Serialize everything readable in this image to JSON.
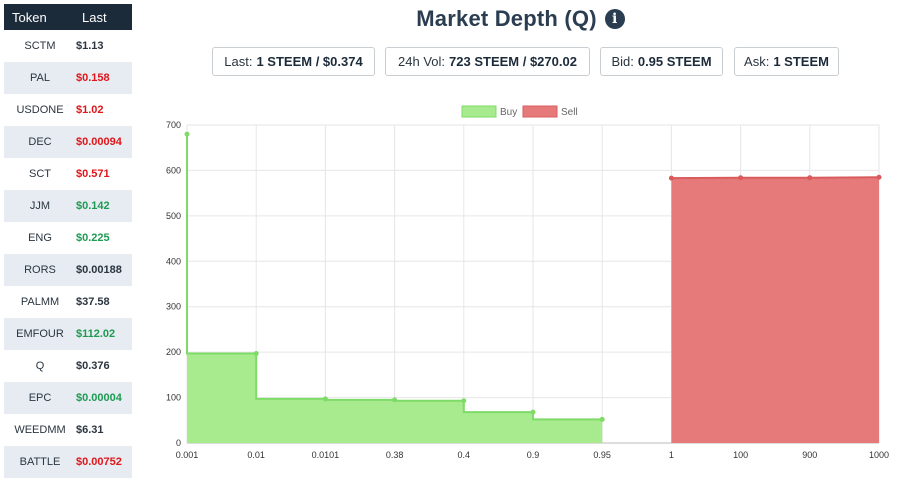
{
  "token_table": {
    "header": {
      "token": "Token",
      "last": "Last"
    },
    "rows": [
      {
        "symbol": "SCTM",
        "price": "$1.13",
        "trend": "neutral"
      },
      {
        "symbol": "PAL",
        "price": "$0.158",
        "trend": "down"
      },
      {
        "symbol": "USDONE",
        "price": "$1.02",
        "trend": "down"
      },
      {
        "symbol": "DEC",
        "price": "$0.00094",
        "trend": "down"
      },
      {
        "symbol": "SCT",
        "price": "$0.571",
        "trend": "down"
      },
      {
        "symbol": "JJM",
        "price": "$0.142",
        "trend": "up"
      },
      {
        "symbol": "ENG",
        "price": "$0.225",
        "trend": "up"
      },
      {
        "symbol": "RORS",
        "price": "$0.00188",
        "trend": "neutral"
      },
      {
        "symbol": "PALMM",
        "price": "$37.58",
        "trend": "neutral"
      },
      {
        "symbol": "EMFOUR",
        "price": "$112.02",
        "trend": "up"
      },
      {
        "symbol": "Q",
        "price": "$0.376",
        "trend": "neutral"
      },
      {
        "symbol": "EPC",
        "price": "$0.00004",
        "trend": "up"
      },
      {
        "symbol": "WEEDMM",
        "price": "$6.31",
        "trend": "neutral"
      },
      {
        "symbol": "BATTLE",
        "price": "$0.00752",
        "trend": "down"
      }
    ]
  },
  "title": "Market Depth (Q)",
  "stats": {
    "last_label": "Last:",
    "last_value": "1 STEEM / $0.374",
    "vol_label": "24h Vol:",
    "vol_value": "723 STEEM / $270.02",
    "bid_label": "Bid:",
    "bid_value": "0.95 STEEM",
    "ask_label": "Ask:",
    "ask_value": "1 STEEM"
  },
  "colors": {
    "buy_fill": "#a8ea8e",
    "buy_line": "#7fdb67",
    "sell_fill": "#e67a7a",
    "sell_line": "#d95c5c",
    "up": "#1e9a52",
    "down": "#e0161b",
    "header_bg": "#1c2b3a"
  },
  "chart_data": {
    "type": "area",
    "xlabel": "",
    "ylabel": "",
    "categories": [
      "0.001",
      "0.01",
      "0.0101",
      "0.38",
      "0.4",
      "0.9",
      "0.95",
      "1",
      "100",
      "900",
      "1000"
    ],
    "ylim": [
      0,
      700
    ],
    "y_ticks": [
      0,
      100,
      200,
      300,
      400,
      500,
      600,
      700
    ],
    "grid": true,
    "legend_position": "top-center",
    "series": [
      {
        "name": "Buy",
        "color": "#a8ea8e",
        "values": [
          680,
          197,
          97,
          95,
          93,
          68,
          52,
          null,
          null,
          null,
          null
        ]
      },
      {
        "name": "Sell",
        "color": "#e67a7a",
        "values": [
          null,
          null,
          null,
          null,
          null,
          null,
          null,
          583,
          584,
          584,
          585
        ]
      }
    ]
  }
}
